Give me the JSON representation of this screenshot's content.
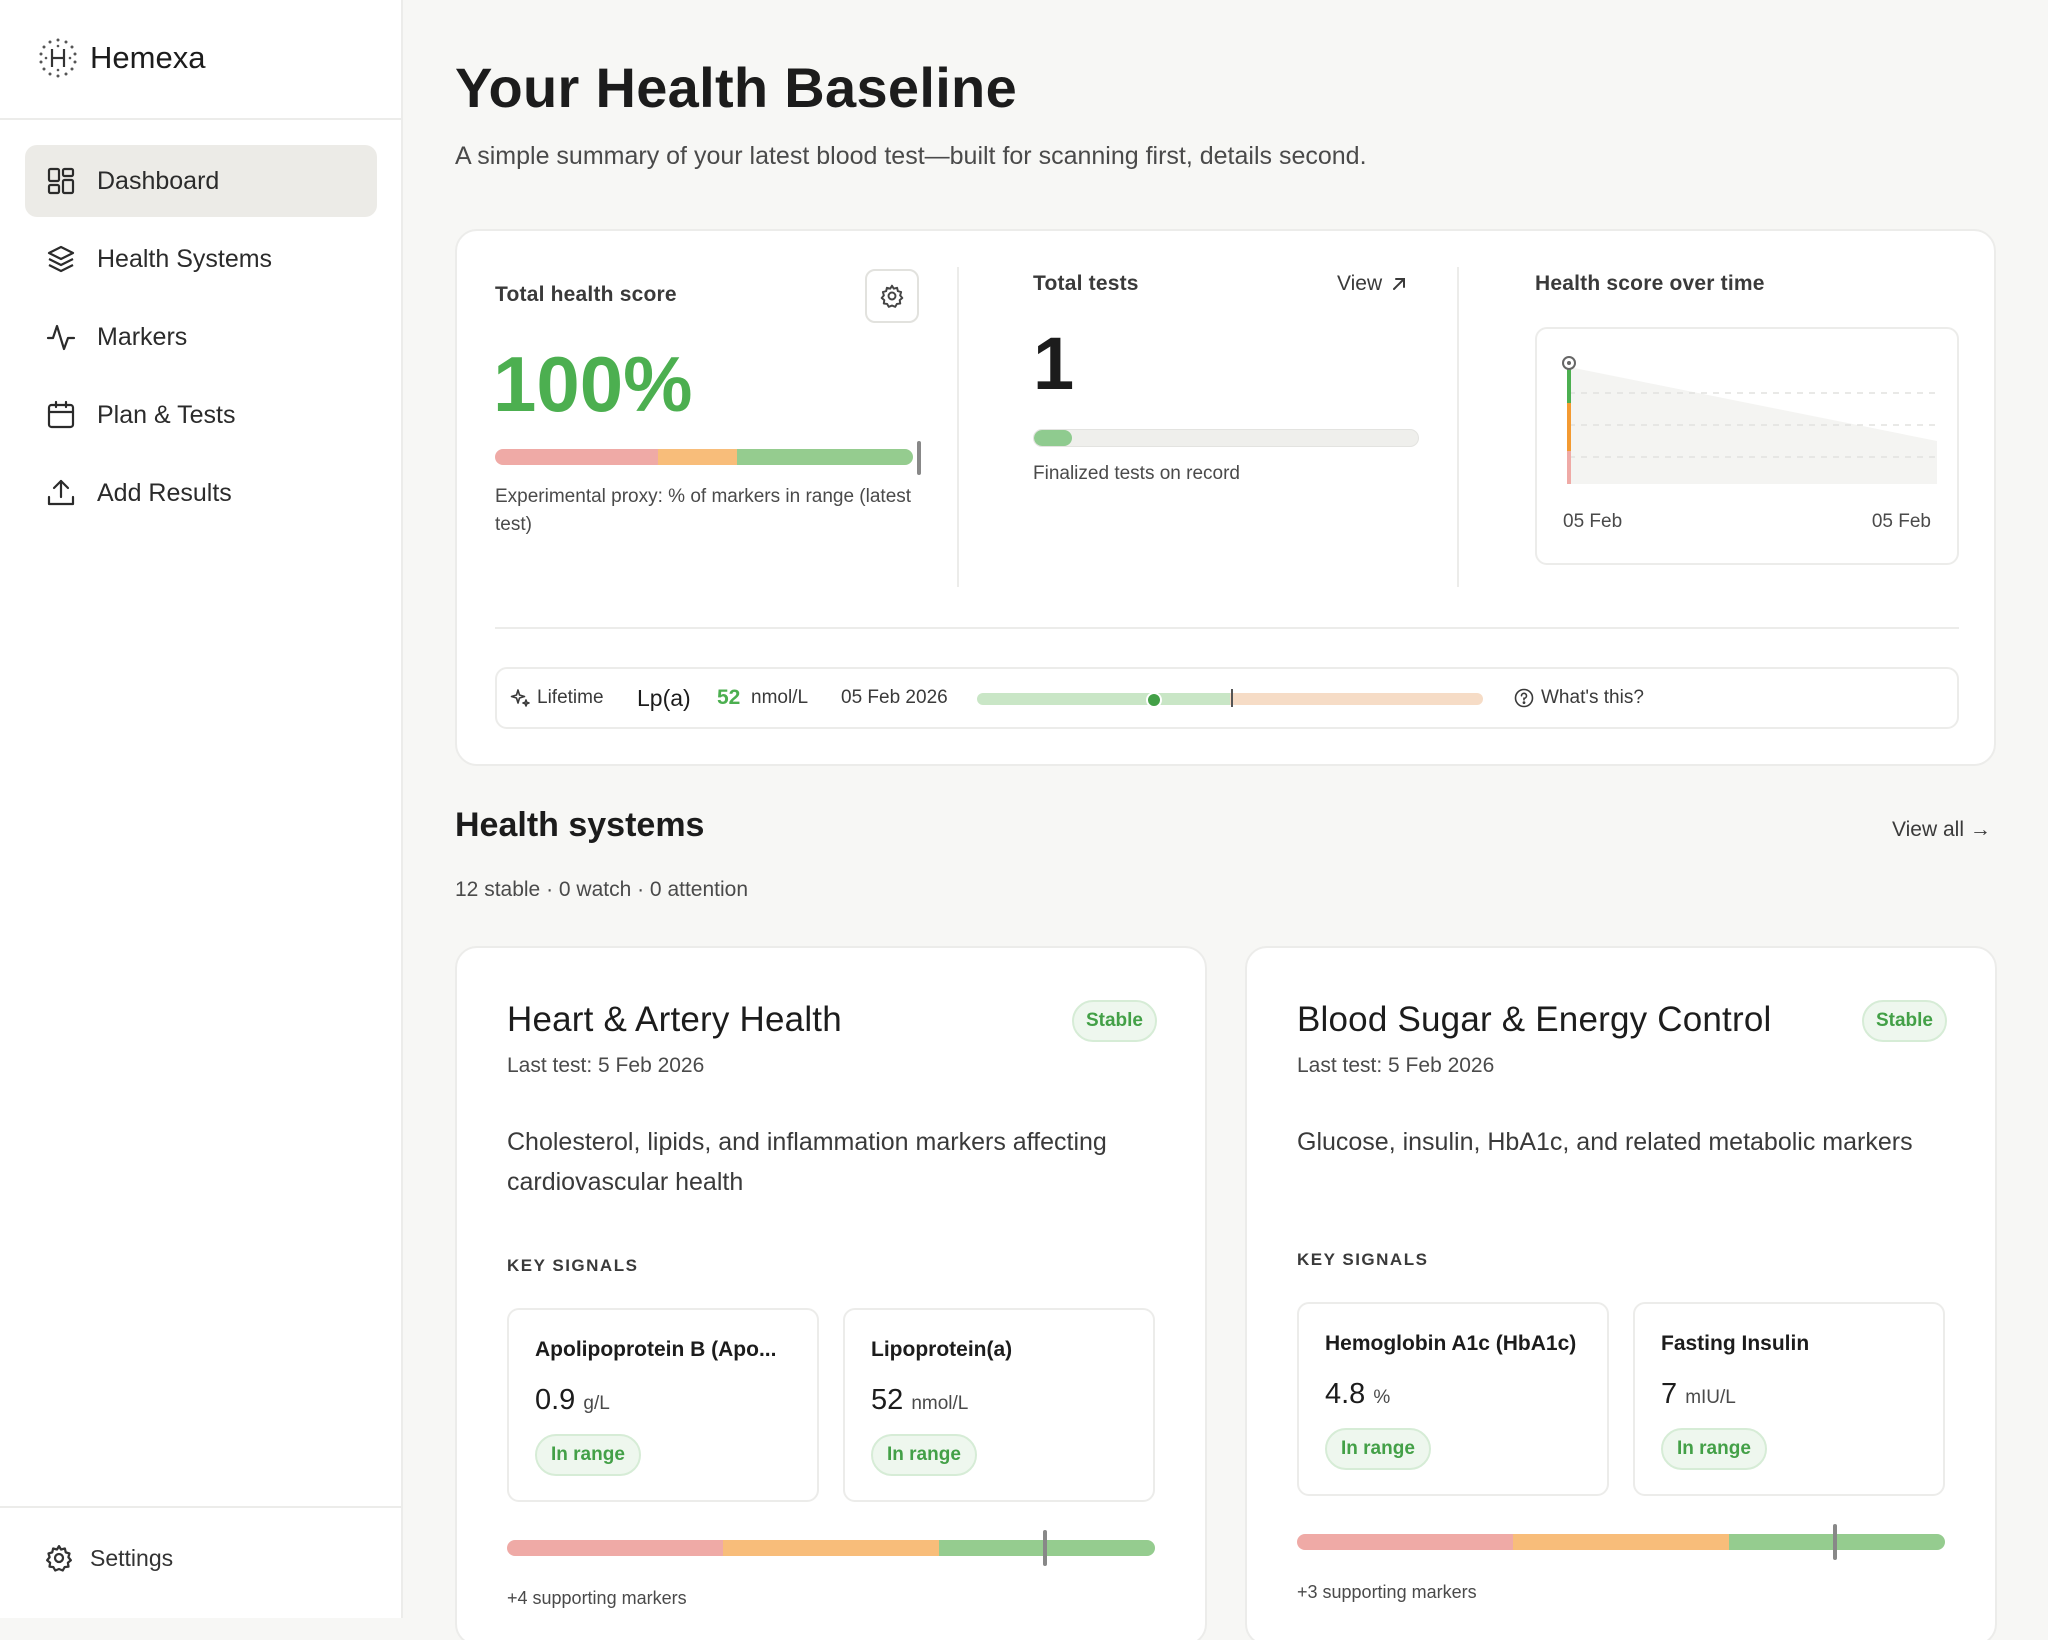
{
  "app": {
    "name": "Hemexa"
  },
  "sidebar": {
    "items": [
      {
        "label": "Dashboard",
        "icon": "dashboard-icon",
        "active": true
      },
      {
        "label": "Health Systems",
        "icon": "layers-icon",
        "active": false
      },
      {
        "label": "Markers",
        "icon": "activity-icon",
        "active": false
      },
      {
        "label": "Plan & Tests",
        "icon": "calendar-icon",
        "active": false
      },
      {
        "label": "Add Results",
        "icon": "upload-icon",
        "active": false
      }
    ],
    "settings_label": "Settings"
  },
  "page": {
    "title": "Your Health Baseline",
    "subtitle": "A simple summary of your latest blood test—built for scanning first, details second."
  },
  "summary": {
    "score_label": "Total health score",
    "score_value": "100%",
    "score_fraction": 1.0,
    "score_note": "Experimental proxy: % of markers in range (latest test)",
    "tests_label": "Total tests",
    "tests_view": "View",
    "tests_value": "1",
    "tests_progress": 0.1,
    "tests_note": "Finalized tests on record",
    "trend_label": "Health score over time",
    "trend_x_start": "05 Feb",
    "trend_x_end": "05 Feb"
  },
  "lifetime": {
    "tag": "Lifetime",
    "marker": "Lp(a)",
    "value": "52",
    "unit": "nmol/L",
    "date": "05 Feb 2026",
    "position": 0.35,
    "help": "What's this?"
  },
  "health_systems": {
    "title": "Health systems",
    "view_all": "View all →",
    "summary": "12 stable · 0 watch · 0 attention",
    "key_signals_label": "KEY SIGNALS",
    "cards": [
      {
        "title": "Heart & Artery Health",
        "status": "Stable",
        "last_test": "Last test: 5 Feb 2026",
        "description": "Cholesterol, lipids, and inflammation markers affecting cardiovascular health",
        "signals": [
          {
            "name": "Apolipoprotein B (Apo...",
            "value": "0.9",
            "unit": "g/L",
            "status": "In range"
          },
          {
            "name": "Lipoprotein(a)",
            "value": "52",
            "unit": "nmol/L",
            "status": "In range"
          }
        ],
        "score_position": 0.83,
        "supporting": "+4 supporting markers"
      },
      {
        "title": "Blood Sugar & Energy Control",
        "status": "Stable",
        "last_test": "Last test: 5 Feb 2026",
        "description": "Glucose, insulin, HbA1c, and related metabolic markers",
        "signals": [
          {
            "name": "Hemoglobin A1c (HbA1c)",
            "value": "4.8",
            "unit": "%",
            "status": "In range"
          },
          {
            "name": "Fasting Insulin",
            "value": "7",
            "unit": "mIU/L",
            "status": "In range"
          }
        ],
        "score_position": 0.83,
        "supporting": "+3 supporting markers"
      }
    ]
  },
  "colors": {
    "accent_green": "#4caf50",
    "range_red": "#efaaa6",
    "range_orange": "#f8bd7a",
    "range_green": "#95cc8f"
  }
}
